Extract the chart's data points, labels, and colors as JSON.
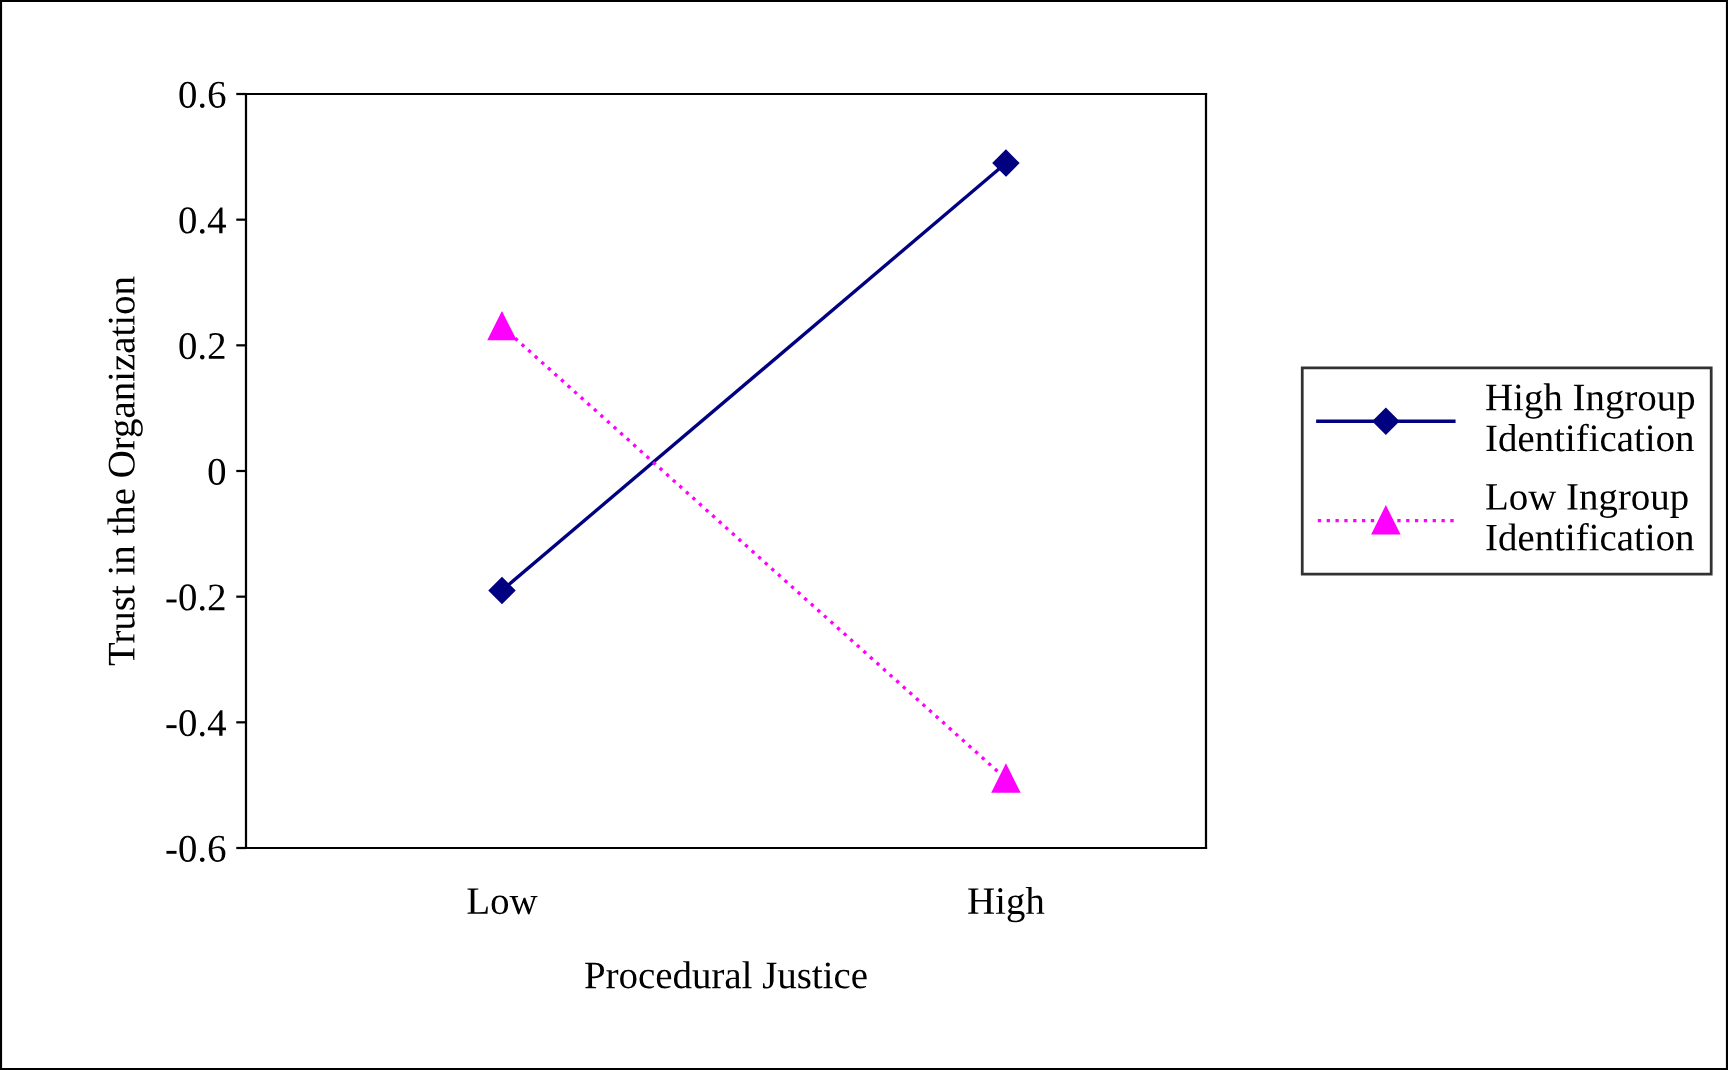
{
  "chart_data": {
    "type": "line",
    "xlabel": "Procedural Justice",
    "ylabel": "Trust in the Organization",
    "categories": [
      "Low",
      "High"
    ],
    "series": [
      {
        "name": "High Ingroup\nIdentification",
        "color": "#000080",
        "values": [
          -0.19,
          0.49
        ],
        "marker": "diamond",
        "line_style": "solid"
      },
      {
        "name": "Low Ingroup\nIdentification",
        "color": "#ff00ff",
        "values": [
          0.23,
          -0.49
        ],
        "marker": "triangle",
        "line_style": "dotted"
      }
    ],
    "ylim": [
      -0.6,
      0.6
    ],
    "yticks": [
      -0.6,
      -0.4,
      -0.2,
      0,
      0.2,
      0.4,
      0.6
    ],
    "grid": false,
    "legend": "right"
  }
}
